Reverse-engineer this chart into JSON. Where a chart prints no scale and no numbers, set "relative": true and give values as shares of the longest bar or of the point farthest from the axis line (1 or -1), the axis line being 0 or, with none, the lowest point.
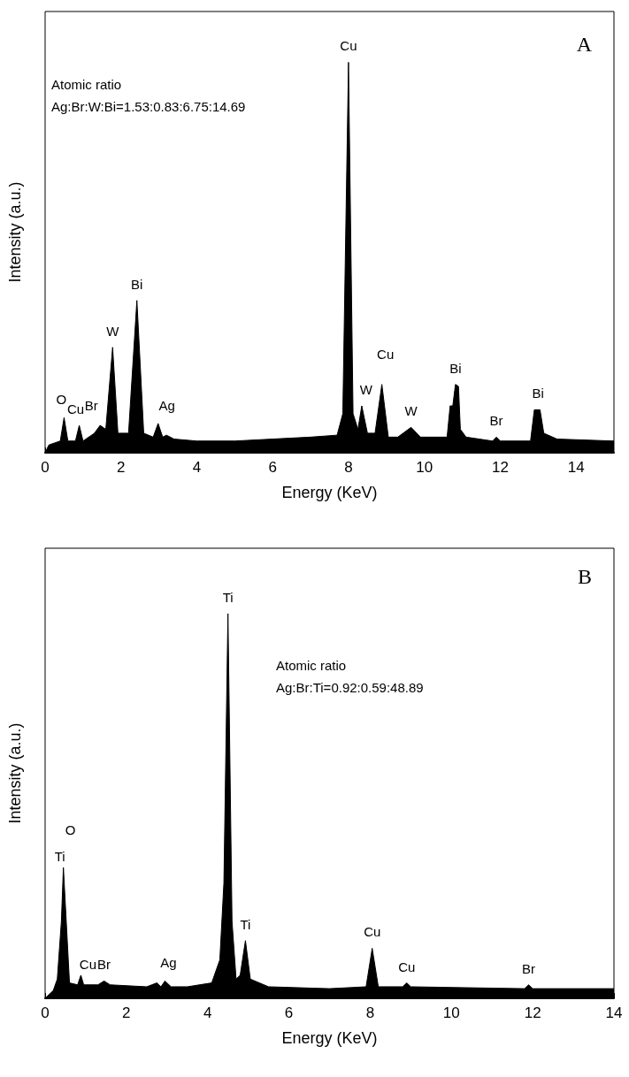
{
  "chart_data": [
    {
      "type": "area",
      "relative": true,
      "xlabel": "Energy (KeV)",
      "ylabel": "Intensity (a.u.)",
      "xlim": [
        0,
        15
      ],
      "xticks": [
        0,
        2,
        4,
        6,
        8,
        10,
        12,
        14
      ],
      "grid": false,
      "marker": "none",
      "series": [
        {
          "color": "#000000",
          "x": [
            0,
            0.1,
            0.4,
            0.5,
            0.6,
            0.8,
            0.9,
            1.0,
            1.3,
            1.45,
            1.6,
            1.78,
            1.92,
            2.2,
            2.42,
            2.6,
            2.85,
            2.98,
            3.1,
            3.2,
            3.4,
            4,
            5,
            6,
            7,
            7.7,
            7.85,
            8.0,
            8.12,
            8.25,
            8.35,
            8.5,
            8.7,
            8.88,
            9.05,
            9.3,
            9.65,
            9.9,
            10.6,
            10.68,
            10.75,
            10.82,
            10.9,
            10.95,
            11.1,
            11.8,
            11.9,
            12.0,
            12.8,
            12.9,
            13.05,
            13.15,
            13.5,
            15
          ],
          "values": [
            0,
            0.02,
            0.03,
            0.09,
            0.03,
            0.03,
            0.07,
            0.03,
            0.05,
            0.07,
            0.06,
            0.27,
            0.05,
            0.05,
            0.39,
            0.05,
            0.04,
            0.075,
            0.04,
            0.045,
            0.035,
            0.03,
            0.03,
            0.035,
            0.04,
            0.045,
            0.1,
            1,
            0.1,
            0.06,
            0.12,
            0.05,
            0.05,
            0.175,
            0.04,
            0.04,
            0.065,
            0.04,
            0.04,
            0.12,
            0.12,
            0.175,
            0.17,
            0.06,
            0.04,
            0.03,
            0.04,
            0.03,
            0.03,
            0.11,
            0.11,
            0.05,
            0.035,
            0.03
          ]
        }
      ],
      "annotations": [
        "A",
        "Atomic ratio",
        "Ag:Br:W:Bi=1.53:0.83:6.75:14.69",
        {
          "text": "Cu",
          "x": 8.0,
          "y": 1
        },
        {
          "text": "O",
          "x": 0.5,
          "y": 0.09
        },
        {
          "text": "Cu",
          "x": 0.9,
          "y": 0.07
        },
        {
          "text": "Br",
          "x": 1.45,
          "y": 0.07
        },
        {
          "text": "W",
          "x": 1.78,
          "y": 0.27
        },
        {
          "text": "Bi",
          "x": 2.42,
          "y": 0.39
        },
        {
          "text": "Ag",
          "x": 2.98,
          "y": 0.075
        },
        {
          "text": "W",
          "x": 8.35,
          "y": 0.12
        },
        {
          "text": "Cu",
          "x": 8.88,
          "y": 0.175
        },
        {
          "text": "W",
          "x": 9.65,
          "y": 0.065
        },
        {
          "text": "Bi",
          "x": 10.82,
          "y": 0.175
        },
        {
          "text": "Br",
          "x": 11.9,
          "y": 0.04
        },
        {
          "text": "Bi",
          "x": 13.0,
          "y": 0.11
        }
      ]
    },
    {
      "type": "area",
      "relative": true,
      "xlabel": "Energy (KeV)",
      "ylabel": "Intensity (a.u.)",
      "xlim": [
        0,
        14
      ],
      "xticks": [
        0,
        2,
        4,
        6,
        8,
        10,
        12,
        14
      ],
      "grid": false,
      "marker": "none",
      "series": [
        {
          "color": "#000000",
          "x": [
            0,
            0.2,
            0.3,
            0.4,
            0.45,
            0.52,
            0.6,
            0.8,
            0.88,
            0.95,
            1.3,
            1.45,
            1.6,
            2.5,
            2.75,
            2.85,
            2.95,
            3.1,
            3.5,
            4.1,
            4.3,
            4.4,
            4.5,
            4.6,
            4.7,
            4.8,
            4.93,
            5.05,
            5.5,
            7,
            7.9,
            8.05,
            8.2,
            8.8,
            8.9,
            9.0,
            11.8,
            11.9,
            12.0,
            14
          ],
          "values": [
            0,
            0.02,
            0.05,
            0.2,
            0.34,
            0.2,
            0.04,
            0.035,
            0.06,
            0.035,
            0.035,
            0.045,
            0.035,
            0.03,
            0.04,
            0.03,
            0.045,
            0.03,
            0.03,
            0.04,
            0.1,
            0.3,
            1,
            0.2,
            0.05,
            0.06,
            0.15,
            0.05,
            0.03,
            0.025,
            0.03,
            0.13,
            0.03,
            0.03,
            0.04,
            0.03,
            0.025,
            0.035,
            0.025,
            0.025
          ]
        }
      ],
      "annotations": [
        "B",
        "Atomic ratio",
        "Ag:Br:Ti=0.92:0.59:48.89",
        {
          "text": "Ti",
          "x": 4.5,
          "y": 1
        },
        {
          "text": "O",
          "x": 0.45,
          "y": 0.34
        },
        {
          "text": "Ti",
          "x": 0.45,
          "y": 0.34
        },
        {
          "text": "Cu",
          "x": 0.88,
          "y": 0.06
        },
        {
          "text": "Br",
          "x": 1.45,
          "y": 0.045
        },
        {
          "text": "Ag",
          "x": 2.95,
          "y": 0.045
        },
        {
          "text": "Ti",
          "x": 4.93,
          "y": 0.15
        },
        {
          "text": "Cu",
          "x": 8.05,
          "y": 0.13
        },
        {
          "text": "Cu",
          "x": 8.9,
          "y": 0.04
        },
        {
          "text": "Br",
          "x": 11.9,
          "y": 0.035
        }
      ]
    }
  ]
}
